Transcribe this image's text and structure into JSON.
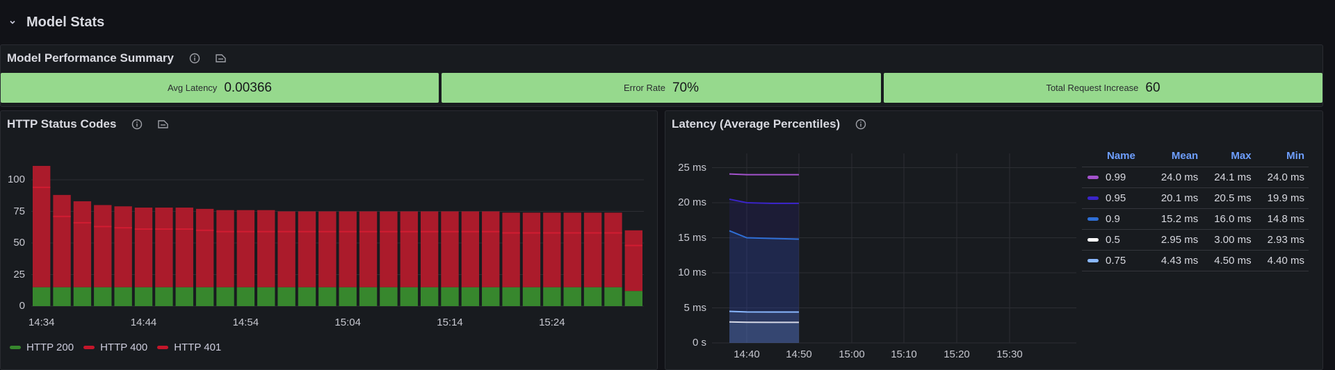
{
  "section": {
    "title": "Model Stats",
    "collapse_icon": "chevron-down-icon"
  },
  "summary_panel": {
    "title": "Model Performance Summary",
    "icons": [
      "info-icon",
      "panel-links-icon"
    ],
    "stats": [
      {
        "label": "Avg Latency",
        "value": "0.00366",
        "color": "#96d98d"
      },
      {
        "label": "Error Rate",
        "value": "70%",
        "color": "#96d98d"
      },
      {
        "label": "Total Request Increase",
        "value": "60",
        "color": "#96d98d"
      }
    ]
  },
  "http_panel": {
    "title": "HTTP Status Codes",
    "icons": [
      "info-icon",
      "panel-links-icon"
    ],
    "y_ticks": [
      "0",
      "25",
      "50",
      "75",
      "100"
    ],
    "x_ticks": [
      "14:34",
      "14:44",
      "14:54",
      "15:04",
      "15:14",
      "15:24"
    ],
    "legend": [
      {
        "label": "HTTP 200",
        "color": "#37872d"
      },
      {
        "label": "HTTP 400",
        "color": "#c4162a"
      },
      {
        "label": "HTTP 401",
        "color": "#c4162a"
      }
    ]
  },
  "latency_panel": {
    "title": "Latency (Average Percentiles)",
    "icons": [
      "info-icon"
    ],
    "y_ticks": [
      "0 s",
      "5 ms",
      "10 ms",
      "15 ms",
      "20 ms",
      "25 ms"
    ],
    "x_ticks": [
      "14:40",
      "14:50",
      "15:00",
      "15:10",
      "15:20",
      "15:30"
    ],
    "legend_table": {
      "headers": [
        "Name",
        "Mean",
        "Max",
        "Min"
      ],
      "rows": [
        {
          "name": "0.99",
          "color": "#a352cc",
          "mean": "24.0 ms",
          "max": "24.1 ms",
          "min": "24.0 ms"
        },
        {
          "name": "0.95",
          "color": "#3a24c8",
          "mean": "20.1 ms",
          "max": "20.5 ms",
          "min": "19.9 ms"
        },
        {
          "name": "0.9",
          "color": "#2f6fd6",
          "mean": "15.2 ms",
          "max": "16.0 ms",
          "min": "14.8 ms"
        },
        {
          "name": "0.5",
          "color": "#ffffff",
          "mean": "2.95 ms",
          "max": "3.00 ms",
          "min": "2.93 ms"
        },
        {
          "name": "0.75",
          "color": "#8ab8ff",
          "mean": "4.43 ms",
          "max": "4.50 ms",
          "min": "4.40 ms"
        }
      ]
    }
  },
  "chart_data": [
    {
      "type": "bar",
      "title": "HTTP Status Codes",
      "stacked": true,
      "xlabel": "",
      "ylabel": "",
      "ylim": [
        0,
        115
      ],
      "x_tick_labels": [
        "14:34",
        "14:44",
        "14:54",
        "15:04",
        "15:14",
        "15:24"
      ],
      "categories": [
        "14:34",
        "14:36",
        "14:38",
        "14:40",
        "14:42",
        "14:44",
        "14:46",
        "14:48",
        "14:50",
        "14:52",
        "14:54",
        "14:56",
        "14:58",
        "15:00",
        "15:02",
        "15:04",
        "15:06",
        "15:08",
        "15:10",
        "15:12",
        "15:14",
        "15:16",
        "15:18",
        "15:20",
        "15:22",
        "15:24",
        "15:26",
        "15:28",
        "15:30",
        "15:32"
      ],
      "series": [
        {
          "name": "HTTP 200",
          "color": "#37872d",
          "values": [
            15,
            15,
            15,
            15,
            15,
            15,
            15,
            15,
            15,
            15,
            15,
            15,
            15,
            15,
            15,
            15,
            15,
            15,
            15,
            15,
            15,
            15,
            15,
            15,
            15,
            15,
            15,
            15,
            15,
            12
          ]
        },
        {
          "name": "HTTP 400",
          "color": "#c4162a",
          "values": [
            79,
            56,
            51,
            48,
            47,
            46,
            46,
            46,
            45,
            44,
            44,
            44,
            44,
            44,
            44,
            44,
            44,
            44,
            44,
            44,
            44,
            44,
            44,
            43,
            43,
            43,
            43,
            43,
            43,
            36
          ]
        },
        {
          "name": "HTTP 401",
          "color": "#ab1b2b",
          "values": [
            17,
            17,
            17,
            17,
            17,
            17,
            17,
            17,
            17,
            17,
            17,
            17,
            16,
            16,
            16,
            16,
            16,
            16,
            16,
            16,
            16,
            16,
            16,
            16,
            16,
            16,
            16,
            16,
            16,
            12
          ]
        }
      ],
      "grid": true,
      "legend_position": "bottom"
    },
    {
      "type": "area",
      "title": "Latency (Average Percentiles)",
      "xlabel": "",
      "ylabel": "",
      "ylim": [
        0,
        27
      ],
      "y_unit": "ms",
      "x": [
        "14:35",
        "14:40",
        "14:45",
        "14:50"
      ],
      "x_tick_labels": [
        "14:40",
        "14:50",
        "15:00",
        "15:10",
        "15:20",
        "15:30"
      ],
      "series": [
        {
          "name": "0.99",
          "color": "#a352cc",
          "values": [
            24.1,
            24.0,
            24.0,
            24.0
          ]
        },
        {
          "name": "0.95",
          "color": "#3a24c8",
          "values": [
            20.5,
            20.0,
            19.9,
            19.9
          ]
        },
        {
          "name": "0.9",
          "color": "#2f6fd6",
          "values": [
            16.0,
            15.0,
            14.9,
            14.8
          ]
        },
        {
          "name": "0.5",
          "color": "#ffffff",
          "values": [
            3.0,
            2.95,
            2.93,
            2.93
          ]
        },
        {
          "name": "0.75",
          "color": "#8ab8ff",
          "values": [
            4.5,
            4.42,
            4.4,
            4.4
          ]
        }
      ],
      "grid": true,
      "legend_position": "right"
    }
  ]
}
